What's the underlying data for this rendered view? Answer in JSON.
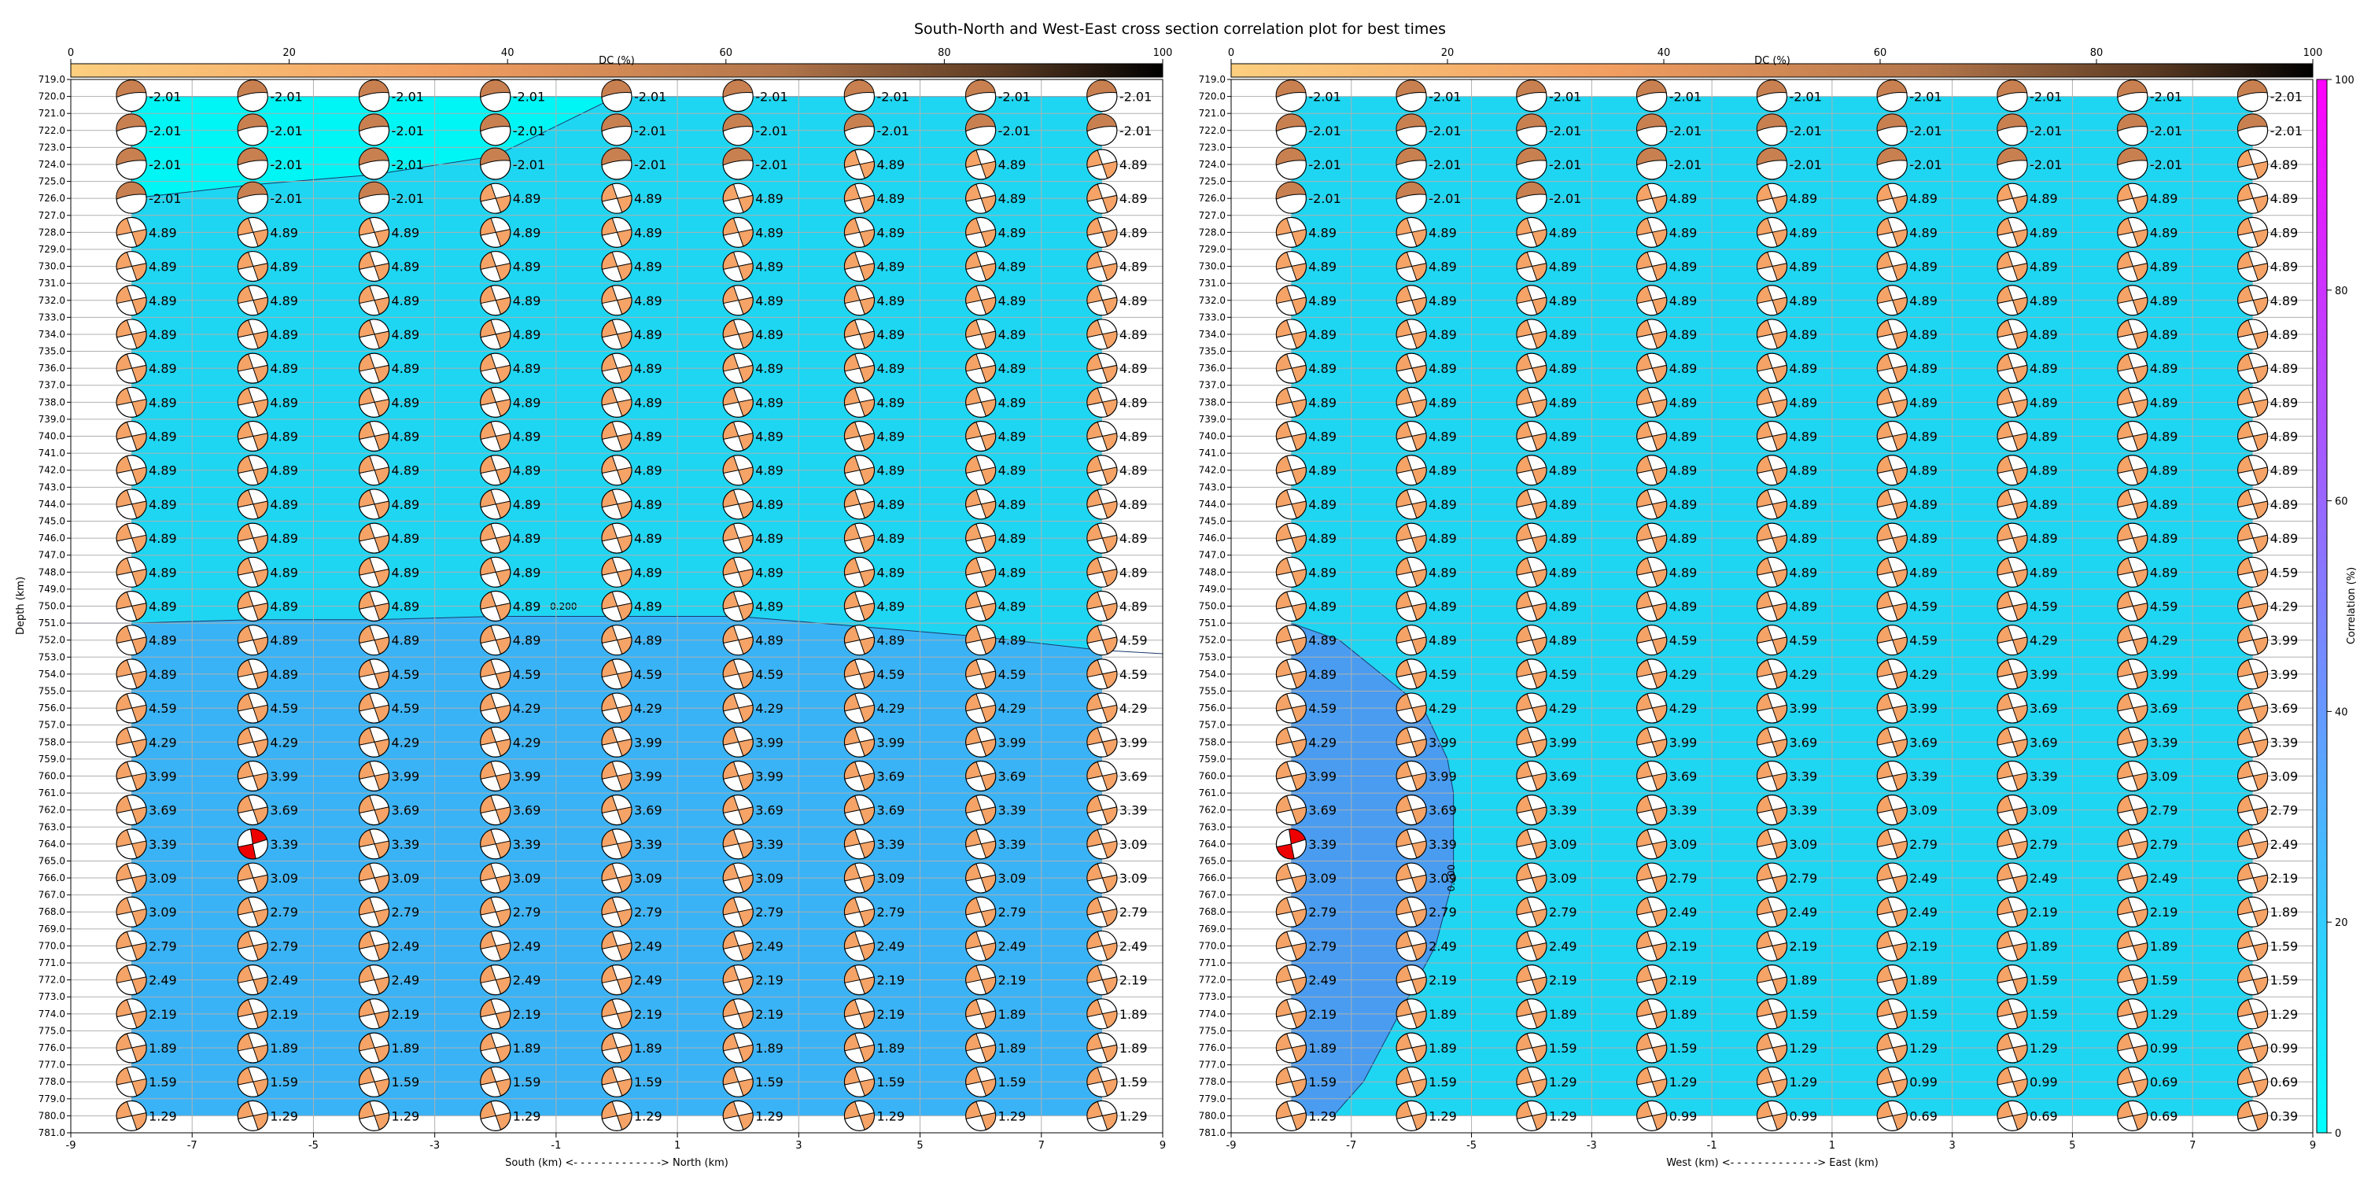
{
  "figure": {
    "title": "South-North and West-East cross section correlation plot for best times"
  },
  "colors": {
    "region_high": "#00f5f5",
    "region_mid": "#1ed6f2",
    "region_low": "#3ab3f6",
    "region_lowest": "#4a9cf0",
    "beachball_dc_light": "#f5a366",
    "beachball_dc_dark": "#c98050",
    "beachball_best": "#ee0000",
    "grid": "#b0b0b0"
  },
  "chart_data": [
    {
      "type": "heatmap",
      "panel": "south-north",
      "xlabel": "South (km) <- - - - - - - - - - - - -> North (km)",
      "ylabel": "Depth (km)",
      "xlim": [
        -9,
        9
      ],
      "ylim": [
        719,
        781
      ],
      "y_inverted": true,
      "xticks": [
        -9,
        -7,
        -5,
        -3,
        -1,
        1,
        3,
        5,
        7,
        9
      ],
      "yticks": [
        719,
        720,
        721,
        722,
        723,
        724,
        725,
        726,
        727,
        728,
        729,
        730,
        731,
        732,
        733,
        734,
        735,
        736,
        737,
        738,
        739,
        740,
        741,
        742,
        743,
        744,
        745,
        746,
        747,
        748,
        749,
        750,
        751,
        752,
        753,
        754,
        755,
        756,
        757,
        758,
        759,
        760,
        761,
        762,
        763,
        764,
        765,
        766,
        767,
        768,
        769,
        770,
        771,
        772,
        773,
        774,
        775,
        776,
        777,
        778,
        779,
        780,
        781
      ],
      "grid": true,
      "x_positions": [
        -8,
        -6,
        -4,
        -2,
        0,
        2,
        4,
        6,
        8
      ],
      "depths": [
        720,
        722,
        724,
        726,
        728,
        730,
        732,
        734,
        736,
        738,
        740,
        742,
        744,
        746,
        748,
        750,
        752,
        754,
        756,
        758,
        760,
        762,
        764,
        766,
        768,
        770,
        772,
        774,
        776,
        778,
        780
      ],
      "magnitudes": [
        [
          "-2.01",
          "-2.01",
          "-2.01",
          "-2.01",
          "-2.01",
          "-2.01",
          "-2.01",
          "-2.01",
          "-2.01"
        ],
        [
          "-2.01",
          "-2.01",
          "-2.01",
          "-2.01",
          "-2.01",
          "-2.01",
          "-2.01",
          "-2.01",
          "-2.01"
        ],
        [
          "-2.01",
          "-2.01",
          "-2.01",
          "-2.01",
          "-2.01",
          "-2.01",
          "4.89",
          "4.89",
          "4.89"
        ],
        [
          "-2.01",
          "-2.01",
          "-2.01",
          "4.89",
          "4.89",
          "4.89",
          "4.89",
          "4.89",
          "4.89"
        ],
        [
          "4.89",
          "4.89",
          "4.89",
          "4.89",
          "4.89",
          "4.89",
          "4.89",
          "4.89",
          "4.89"
        ],
        [
          "4.89",
          "4.89",
          "4.89",
          "4.89",
          "4.89",
          "4.89",
          "4.89",
          "4.89",
          "4.89"
        ],
        [
          "4.89",
          "4.89",
          "4.89",
          "4.89",
          "4.89",
          "4.89",
          "4.89",
          "4.89",
          "4.89"
        ],
        [
          "4.89",
          "4.89",
          "4.89",
          "4.89",
          "4.89",
          "4.89",
          "4.89",
          "4.89",
          "4.89"
        ],
        [
          "4.89",
          "4.89",
          "4.89",
          "4.89",
          "4.89",
          "4.89",
          "4.89",
          "4.89",
          "4.89"
        ],
        [
          "4.89",
          "4.89",
          "4.89",
          "4.89",
          "4.89",
          "4.89",
          "4.89",
          "4.89",
          "4.89"
        ],
        [
          "4.89",
          "4.89",
          "4.89",
          "4.89",
          "4.89",
          "4.89",
          "4.89",
          "4.89",
          "4.89"
        ],
        [
          "4.89",
          "4.89",
          "4.89",
          "4.89",
          "4.89",
          "4.89",
          "4.89",
          "4.89",
          "4.89"
        ],
        [
          "4.89",
          "4.89",
          "4.89",
          "4.89",
          "4.89",
          "4.89",
          "4.89",
          "4.89",
          "4.89"
        ],
        [
          "4.89",
          "4.89",
          "4.89",
          "4.89",
          "4.89",
          "4.89",
          "4.89",
          "4.89",
          "4.89"
        ],
        [
          "4.89",
          "4.89",
          "4.89",
          "4.89",
          "4.89",
          "4.89",
          "4.89",
          "4.89",
          "4.89"
        ],
        [
          "4.89",
          "4.89",
          "4.89",
          "4.89",
          "4.89",
          "4.89",
          "4.89",
          "4.89",
          "4.89"
        ],
        [
          "4.89",
          "4.89",
          "4.89",
          "4.89",
          "4.89",
          "4.89",
          "4.89",
          "4.89",
          "4.59"
        ],
        [
          "4.89",
          "4.89",
          "4.59",
          "4.59",
          "4.59",
          "4.59",
          "4.59",
          "4.59",
          "4.59"
        ],
        [
          "4.59",
          "4.59",
          "4.59",
          "4.29",
          "4.29",
          "4.29",
          "4.29",
          "4.29",
          "4.29"
        ],
        [
          "4.29",
          "4.29",
          "4.29",
          "4.29",
          "3.99",
          "3.99",
          "3.99",
          "3.99",
          "3.99"
        ],
        [
          "3.99",
          "3.99",
          "3.99",
          "3.99",
          "3.99",
          "3.99",
          "3.69",
          "3.69",
          "3.69"
        ],
        [
          "3.69",
          "3.69",
          "3.69",
          "3.69",
          "3.69",
          "3.69",
          "3.69",
          "3.39",
          "3.39"
        ],
        [
          "3.39",
          "3.39",
          "3.39",
          "3.39",
          "3.39",
          "3.39",
          "3.39",
          "3.39",
          "3.09"
        ],
        [
          "3.09",
          "3.09",
          "3.09",
          "3.09",
          "3.09",
          "3.09",
          "3.09",
          "3.09",
          "3.09"
        ],
        [
          "3.09",
          "2.79",
          "2.79",
          "2.79",
          "2.79",
          "2.79",
          "2.79",
          "2.79",
          "2.79"
        ],
        [
          "2.79",
          "2.79",
          "2.49",
          "2.49",
          "2.49",
          "2.49",
          "2.49",
          "2.49",
          "2.49"
        ],
        [
          "2.49",
          "2.49",
          "2.49",
          "2.49",
          "2.49",
          "2.19",
          "2.19",
          "2.19",
          "2.19"
        ],
        [
          "2.19",
          "2.19",
          "2.19",
          "2.19",
          "2.19",
          "2.19",
          "2.19",
          "1.89",
          "1.89"
        ],
        [
          "1.89",
          "1.89",
          "1.89",
          "1.89",
          "1.89",
          "1.89",
          "1.89",
          "1.89",
          "1.89"
        ],
        [
          "1.59",
          "1.59",
          "1.59",
          "1.59",
          "1.59",
          "1.59",
          "1.59",
          "1.59",
          "1.59"
        ],
        [
          "1.29",
          "1.29",
          "1.29",
          "1.29",
          "1.29",
          "1.29",
          "1.29",
          "1.29",
          "1.29"
        ]
      ],
      "dark_rows": [
        0,
        1,
        2,
        3
      ],
      "dark_depth_limit": 726,
      "best_solution": {
        "x": -6,
        "depth": 764
      },
      "contour_label": "0.200",
      "region_high_boundary": {
        "x": [
          -8,
          -6,
          -4,
          -2,
          0,
          2,
          4,
          6,
          8
        ],
        "depth": [
          726,
          725.2,
          724.6,
          723.5,
          720,
          720,
          720,
          720,
          720
        ]
      },
      "region_low_boundary": {
        "x": [
          -9,
          -8,
          -6,
          -4,
          -2,
          0,
          2,
          4,
          6,
          8,
          9
        ],
        "depth": [
          751,
          751,
          750.8,
          750.8,
          750.6,
          750.6,
          750.6,
          751.2,
          751.8,
          752.6,
          752.8
        ]
      }
    },
    {
      "type": "heatmap",
      "panel": "west-east",
      "xlabel": "West (km) <- - - - - - - - - - - - -> East (km)",
      "ylabel": "",
      "xlim": [
        -9,
        9
      ],
      "ylim": [
        719,
        781
      ],
      "y_inverted": true,
      "xticks": [
        -9,
        -7,
        -5,
        -3,
        -1,
        1,
        3,
        5,
        7,
        9
      ],
      "yticks": [
        719,
        720,
        721,
        722,
        723,
        724,
        725,
        726,
        727,
        728,
        729,
        730,
        731,
        732,
        733,
        734,
        735,
        736,
        737,
        738,
        739,
        740,
        741,
        742,
        743,
        744,
        745,
        746,
        747,
        748,
        749,
        750,
        751,
        752,
        753,
        754,
        755,
        756,
        757,
        758,
        759,
        760,
        761,
        762,
        763,
        764,
        765,
        766,
        767,
        768,
        769,
        770,
        771,
        772,
        773,
        774,
        775,
        776,
        777,
        778,
        779,
        780,
        781
      ],
      "grid": true,
      "x_positions": [
        -8,
        -6,
        -4,
        -2,
        0,
        2,
        4,
        6,
        8
      ],
      "depths": [
        720,
        722,
        724,
        726,
        728,
        730,
        732,
        734,
        736,
        738,
        740,
        742,
        744,
        746,
        748,
        750,
        752,
        754,
        756,
        758,
        760,
        762,
        764,
        766,
        768,
        770,
        772,
        774,
        776,
        778,
        780
      ],
      "magnitudes": [
        [
          "-2.01",
          "-2.01",
          "-2.01",
          "-2.01",
          "-2.01",
          "-2.01",
          "-2.01",
          "-2.01",
          "-2.01"
        ],
        [
          "-2.01",
          "-2.01",
          "-2.01",
          "-2.01",
          "-2.01",
          "-2.01",
          "-2.01",
          "-2.01",
          "-2.01"
        ],
        [
          "-2.01",
          "-2.01",
          "-2.01",
          "-2.01",
          "-2.01",
          "-2.01",
          "-2.01",
          "-2.01",
          "4.89"
        ],
        [
          "-2.01",
          "-2.01",
          "-2.01",
          "4.89",
          "4.89",
          "4.89",
          "4.89",
          "4.89",
          "4.89"
        ],
        [
          "4.89",
          "4.89",
          "4.89",
          "4.89",
          "4.89",
          "4.89",
          "4.89",
          "4.89",
          "4.89"
        ],
        [
          "4.89",
          "4.89",
          "4.89",
          "4.89",
          "4.89",
          "4.89",
          "4.89",
          "4.89",
          "4.89"
        ],
        [
          "4.89",
          "4.89",
          "4.89",
          "4.89",
          "4.89",
          "4.89",
          "4.89",
          "4.89",
          "4.89"
        ],
        [
          "4.89",
          "4.89",
          "4.89",
          "4.89",
          "4.89",
          "4.89",
          "4.89",
          "4.89",
          "4.89"
        ],
        [
          "4.89",
          "4.89",
          "4.89",
          "4.89",
          "4.89",
          "4.89",
          "4.89",
          "4.89",
          "4.89"
        ],
        [
          "4.89",
          "4.89",
          "4.89",
          "4.89",
          "4.89",
          "4.89",
          "4.89",
          "4.89",
          "4.89"
        ],
        [
          "4.89",
          "4.89",
          "4.89",
          "4.89",
          "4.89",
          "4.89",
          "4.89",
          "4.89",
          "4.89"
        ],
        [
          "4.89",
          "4.89",
          "4.89",
          "4.89",
          "4.89",
          "4.89",
          "4.89",
          "4.89",
          "4.89"
        ],
        [
          "4.89",
          "4.89",
          "4.89",
          "4.89",
          "4.89",
          "4.89",
          "4.89",
          "4.89",
          "4.89"
        ],
        [
          "4.89",
          "4.89",
          "4.89",
          "4.89",
          "4.89",
          "4.89",
          "4.89",
          "4.89",
          "4.89"
        ],
        [
          "4.89",
          "4.89",
          "4.89",
          "4.89",
          "4.89",
          "4.89",
          "4.89",
          "4.89",
          "4.59"
        ],
        [
          "4.89",
          "4.89",
          "4.89",
          "4.89",
          "4.89",
          "4.59",
          "4.59",
          "4.59",
          "4.29"
        ],
        [
          "4.89",
          "4.89",
          "4.89",
          "4.59",
          "4.59",
          "4.59",
          "4.29",
          "4.29",
          "3.99"
        ],
        [
          "4.89",
          "4.59",
          "4.59",
          "4.29",
          "4.29",
          "4.29",
          "3.99",
          "3.99",
          "3.99"
        ],
        [
          "4.59",
          "4.29",
          "4.29",
          "4.29",
          "3.99",
          "3.99",
          "3.69",
          "3.69",
          "3.69"
        ],
        [
          "4.29",
          "3.99",
          "3.99",
          "3.99",
          "3.69",
          "3.69",
          "3.69",
          "3.39",
          "3.39"
        ],
        [
          "3.99",
          "3.99",
          "3.69",
          "3.69",
          "3.39",
          "3.39",
          "3.39",
          "3.09",
          "3.09"
        ],
        [
          "3.69",
          "3.69",
          "3.39",
          "3.39",
          "3.39",
          "3.09",
          "3.09",
          "2.79",
          "2.79"
        ],
        [
          "3.39",
          "3.39",
          "3.09",
          "3.09",
          "3.09",
          "2.79",
          "2.79",
          "2.79",
          "2.49"
        ],
        [
          "3.09",
          "3.09",
          "3.09",
          "2.79",
          "2.79",
          "2.49",
          "2.49",
          "2.49",
          "2.19"
        ],
        [
          "2.79",
          "2.79",
          "2.79",
          "2.49",
          "2.49",
          "2.49",
          "2.19",
          "2.19",
          "1.89"
        ],
        [
          "2.79",
          "2.49",
          "2.49",
          "2.19",
          "2.19",
          "2.19",
          "1.89",
          "1.89",
          "1.59"
        ],
        [
          "2.49",
          "2.19",
          "2.19",
          "2.19",
          "1.89",
          "1.89",
          "1.59",
          "1.59",
          "1.59"
        ],
        [
          "2.19",
          "1.89",
          "1.89",
          "1.89",
          "1.59",
          "1.59",
          "1.59",
          "1.29",
          "1.29"
        ],
        [
          "1.89",
          "1.89",
          "1.59",
          "1.59",
          "1.29",
          "1.29",
          "1.29",
          "0.99",
          "0.99"
        ],
        [
          "1.59",
          "1.59",
          "1.29",
          "1.29",
          "1.29",
          "0.99",
          "0.99",
          "0.69",
          "0.69"
        ],
        [
          "1.29",
          "1.29",
          "1.29",
          "0.99",
          "0.99",
          "0.69",
          "0.69",
          "0.69",
          "0.39"
        ]
      ],
      "dark_rows": [
        0,
        1,
        2,
        3
      ],
      "dark_depth_limit": 726,
      "best_solution": {
        "x": -8,
        "depth": 764
      },
      "contour_label": "0.200",
      "region_low_boundary": {
        "x": [
          -8,
          -7.2,
          -6.5,
          -5.8,
          -5.4,
          -5.3,
          -5.3,
          -5.6,
          -6.2,
          -6.8,
          -7.3
        ],
        "depth": [
          751,
          752,
          754,
          756,
          759,
          761,
          766,
          770,
          774,
          778,
          780
        ]
      }
    }
  ],
  "dc_colorbars": [
    {
      "label": "DC (%)",
      "ticks": [
        0,
        20,
        40,
        60,
        80,
        100
      ],
      "range": [
        0,
        100
      ]
    },
    {
      "label": "DC (%)",
      "ticks": [
        0,
        20,
        40,
        60,
        80,
        100
      ],
      "range": [
        0,
        100
      ]
    }
  ],
  "correlation_colorbar": {
    "label": "Correlation (%)",
    "ticks": [
      0,
      20,
      40,
      60,
      80,
      100
    ],
    "range": [
      0,
      100
    ],
    "colors": [
      "#00ffff",
      "#ff00ff"
    ]
  }
}
